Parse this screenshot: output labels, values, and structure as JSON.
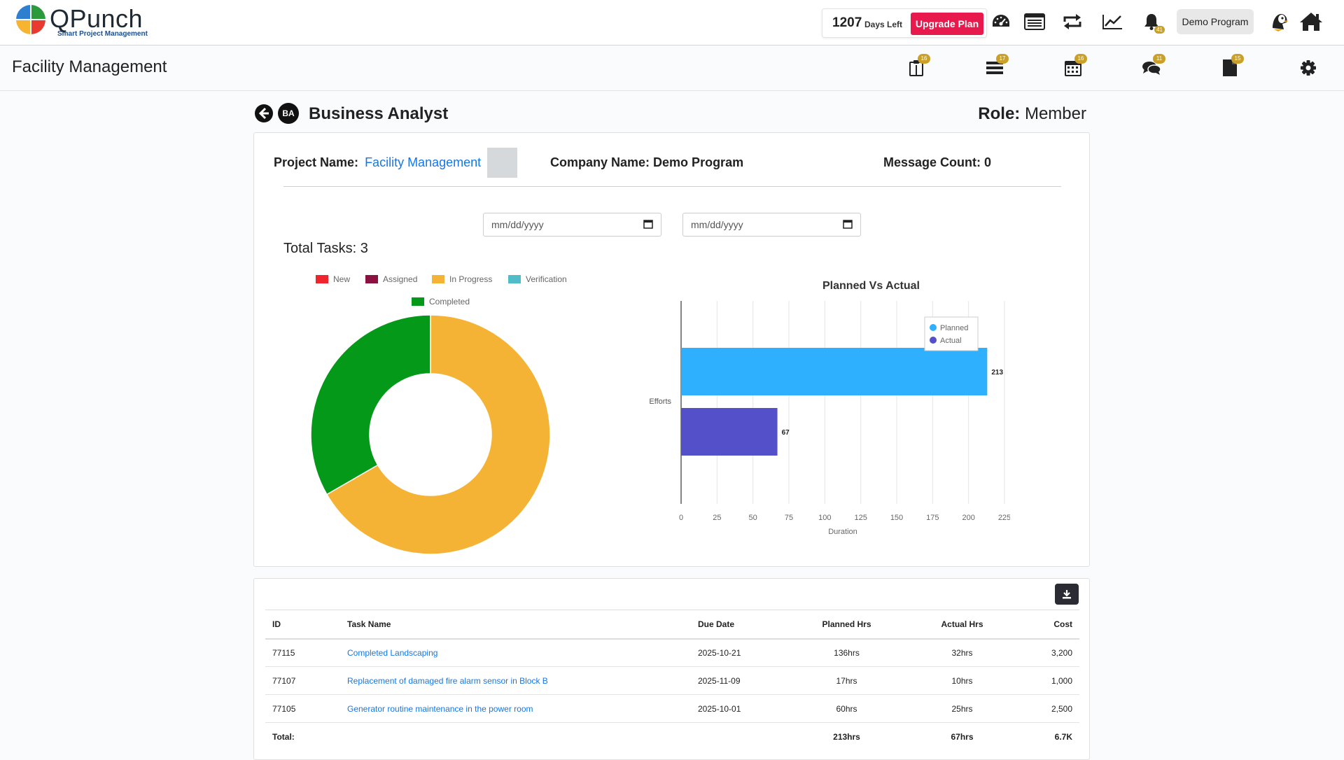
{
  "brand": {
    "name": "QPunch",
    "tagline": "Smart Project Management"
  },
  "topbar": {
    "days_left_value": "1207",
    "days_left_label": "Days Left",
    "upgrade_label": "Upgrade Plan",
    "notification_count": "41",
    "program_label": "Demo Program",
    "icons": [
      "dashboard-icon",
      "list-icon",
      "sync-icon",
      "chart-line-icon",
      "bell-icon",
      "avatar",
      "home-icon"
    ]
  },
  "subbar": {
    "title": "Facility Management",
    "icons": [
      {
        "name": "clipboard-icon",
        "badge": "16"
      },
      {
        "name": "tasks-icon",
        "badge": "17"
      },
      {
        "name": "calendar-icon",
        "badge": "16"
      },
      {
        "name": "comments-icon",
        "badge": "11"
      },
      {
        "name": "file-icon",
        "badge": "15"
      },
      {
        "name": "settings-icon",
        "badge": ""
      }
    ]
  },
  "header": {
    "initials": "BA",
    "person_name": "Business Analyst",
    "role_label": "Role:",
    "role_value": "Member"
  },
  "project": {
    "project_label": "Project Name:",
    "project_name": "Facility Management",
    "company_label": "Company Name:",
    "company_name": "Demo Program",
    "message_label": "Message Count:",
    "message_count": "0",
    "date_from_placeholder": "mm/dd/yyyy",
    "date_to_placeholder": "mm/dd/yyyy",
    "total_tasks_label": "Total Tasks:",
    "total_tasks_value": "3"
  },
  "chart_data": [
    {
      "type": "pie",
      "variant": "donut",
      "categories": [
        "New",
        "Assigned",
        "In Progress",
        "Verification",
        "Completed"
      ],
      "values": [
        0,
        0,
        2,
        0,
        1
      ],
      "colors": [
        "#f0242d",
        "#8a1140",
        "#f5b335",
        "#4fbdc9",
        "#05991a"
      ],
      "legend": "top"
    },
    {
      "type": "bar",
      "orientation": "horizontal",
      "title": "Planned Vs Actual",
      "categories": [
        "Efforts"
      ],
      "series": [
        {
          "name": "Planned",
          "values": [
            213
          ],
          "color": "#2eb0ff"
        },
        {
          "name": "Actual",
          "values": [
            67
          ],
          "color": "#5450c9"
        }
      ],
      "xlabel": "Duration",
      "ylabel": "",
      "xlim": [
        0,
        225
      ],
      "xticks": [
        "0",
        "25",
        "50",
        "75",
        "100",
        "125",
        "150",
        "175",
        "200",
        "225"
      ],
      "grid": true,
      "legend": "top-right"
    }
  ],
  "table": {
    "headers": [
      "ID",
      "Task Name",
      "Due Date",
      "Planned Hrs",
      "Actual Hrs",
      "Cost"
    ],
    "rows": [
      {
        "id": "77115",
        "name": "Completed Landscaping",
        "due": "2025-10-21",
        "planned": "136hrs",
        "actual": "32hrs",
        "cost": "3,200"
      },
      {
        "id": "77107",
        "name": "Replacement of damaged fire alarm sensor in Block B",
        "due": "2025-11-09",
        "planned": "17hrs",
        "actual": "10hrs",
        "cost": "1,000"
      },
      {
        "id": "77105",
        "name": "Generator routine maintenance in the power room",
        "due": "2025-10-01",
        "planned": "60hrs",
        "actual": "25hrs",
        "cost": "2,500"
      }
    ],
    "total": {
      "label": "Total:",
      "planned": "213hrs",
      "actual": "67hrs",
      "cost": "6.7K"
    }
  }
}
